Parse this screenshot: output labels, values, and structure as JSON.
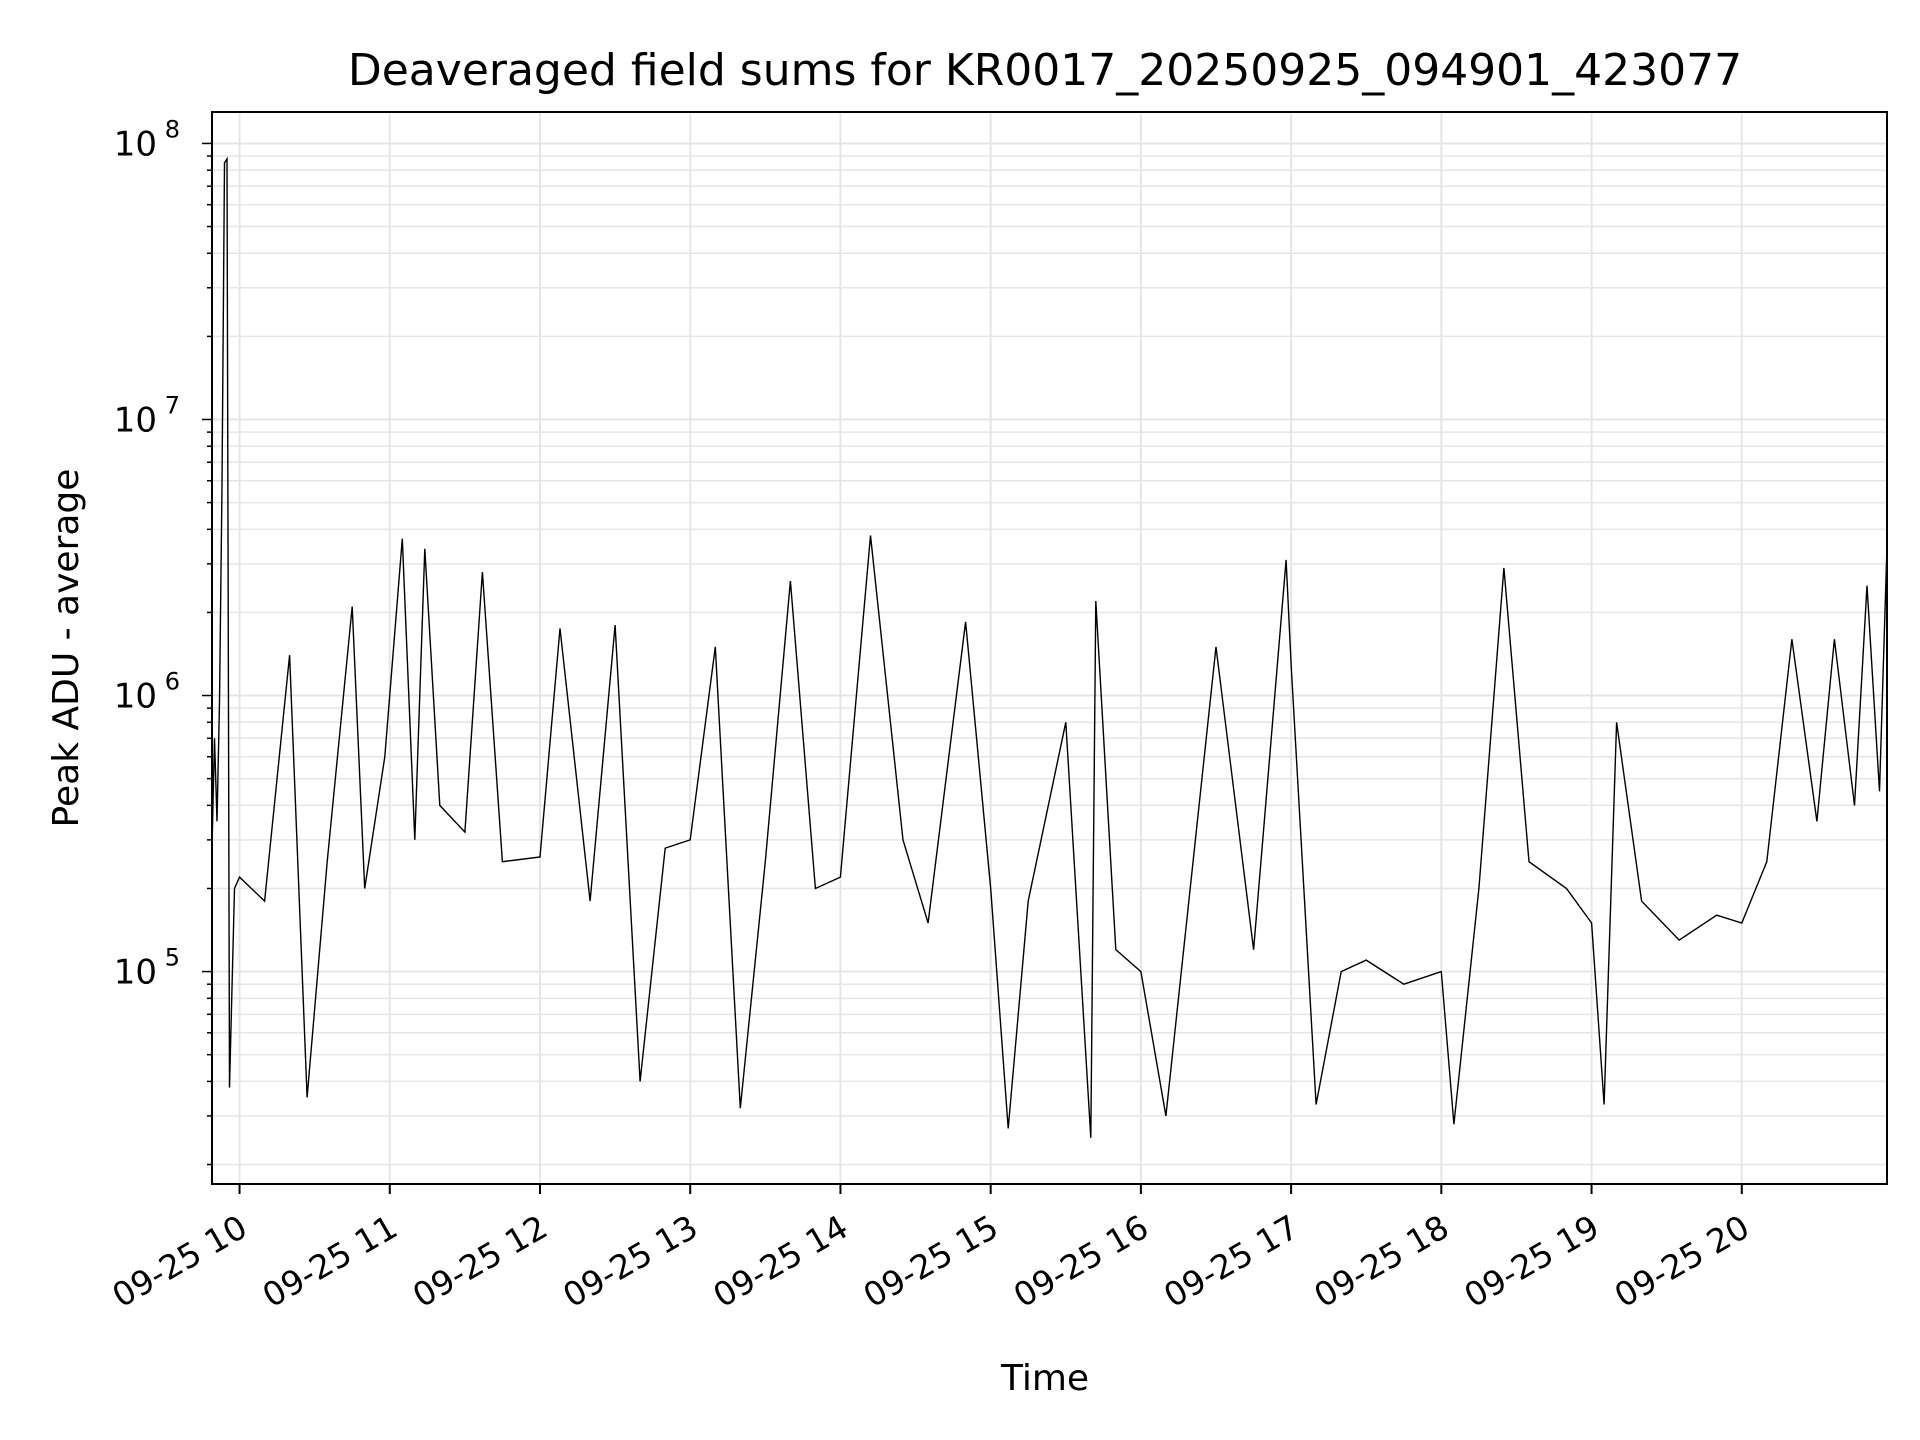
{
  "chart_data": {
    "type": "line",
    "title": "Deaveraged field sums for KR0017_20250925_094901_423077",
    "xlabel": "Time",
    "ylabel": "Peak ADU - average",
    "yscale": "log",
    "ylim": [
      17000,
      130000000
    ],
    "xlim": [
      "2025-09-25 09:49",
      "2025-09-25 20:58"
    ],
    "grid": true,
    "line_color": "#000000",
    "grid_color": "#e6e6e6",
    "x_ticks": [
      {
        "value": "2025-09-25 10:00",
        "label": "09-25 10"
      },
      {
        "value": "2025-09-25 11:00",
        "label": "09-25 11"
      },
      {
        "value": "2025-09-25 12:00",
        "label": "09-25 12"
      },
      {
        "value": "2025-09-25 13:00",
        "label": "09-25 13"
      },
      {
        "value": "2025-09-25 14:00",
        "label": "09-25 14"
      },
      {
        "value": "2025-09-25 15:00",
        "label": "09-25 15"
      },
      {
        "value": "2025-09-25 16:00",
        "label": "09-25 16"
      },
      {
        "value": "2025-09-25 17:00",
        "label": "09-25 17"
      },
      {
        "value": "2025-09-25 18:00",
        "label": "09-25 18"
      },
      {
        "value": "2025-09-25 19:00",
        "label": "09-25 19"
      },
      {
        "value": "2025-09-25 20:00",
        "label": "09-25 20"
      }
    ],
    "y_ticks": [
      {
        "value": 100000,
        "base": "10",
        "exp": "5"
      },
      {
        "value": 1000000,
        "base": "10",
        "exp": "6"
      },
      {
        "value": 10000000,
        "base": "10",
        "exp": "7"
      },
      {
        "value": 100000000,
        "base": "10",
        "exp": "8"
      }
    ],
    "series": [
      {
        "points": [
          [
            "2025-09-25 09:49",
            280000
          ],
          [
            "2025-09-25 09:50",
            700000
          ],
          [
            "2025-09-25 09:51",
            350000
          ],
          [
            "2025-09-25 09:52",
            950000
          ],
          [
            "2025-09-25 09:53",
            5800000
          ],
          [
            "2025-09-25 09:54",
            85000000
          ],
          [
            "2025-09-25 09:55",
            88000000
          ],
          [
            "2025-09-25 09:56",
            38000
          ],
          [
            "2025-09-25 09:58",
            200000
          ],
          [
            "2025-09-25 10:00",
            220000
          ],
          [
            "2025-09-25 10:10",
            180000
          ],
          [
            "2025-09-25 10:20",
            1400000
          ],
          [
            "2025-09-25 10:27",
            35000
          ],
          [
            "2025-09-25 10:35",
            250000
          ],
          [
            "2025-09-25 10:45",
            2100000
          ],
          [
            "2025-09-25 10:50",
            200000
          ],
          [
            "2025-09-25 10:58",
            600000
          ],
          [
            "2025-09-25 11:05",
            3700000
          ],
          [
            "2025-09-25 11:10",
            300000
          ],
          [
            "2025-09-25 11:14",
            3400000
          ],
          [
            "2025-09-25 11:20",
            400000
          ],
          [
            "2025-09-25 11:30",
            320000
          ],
          [
            "2025-09-25 11:37",
            2800000
          ],
          [
            "2025-09-25 11:45",
            250000
          ],
          [
            "2025-09-25 12:00",
            260000
          ],
          [
            "2025-09-25 12:08",
            1750000
          ],
          [
            "2025-09-25 12:20",
            180000
          ],
          [
            "2025-09-25 12:30",
            1800000
          ],
          [
            "2025-09-25 12:40",
            40000
          ],
          [
            "2025-09-25 12:50",
            280000
          ],
          [
            "2025-09-25 13:00",
            300000
          ],
          [
            "2025-09-25 13:10",
            1500000
          ],
          [
            "2025-09-25 13:20",
            32000
          ],
          [
            "2025-09-25 13:30",
            250000
          ],
          [
            "2025-09-25 13:40",
            2600000
          ],
          [
            "2025-09-25 13:50",
            200000
          ],
          [
            "2025-09-25 14:00",
            220000
          ],
          [
            "2025-09-25 14:12",
            3800000
          ],
          [
            "2025-09-25 14:25",
            300000
          ],
          [
            "2025-09-25 14:35",
            150000
          ],
          [
            "2025-09-25 14:50",
            1850000
          ],
          [
            "2025-09-25 15:00",
            200000
          ],
          [
            "2025-09-25 15:07",
            27000
          ],
          [
            "2025-09-25 15:15",
            180000
          ],
          [
            "2025-09-25 15:30",
            800000
          ],
          [
            "2025-09-25 15:40",
            25000
          ],
          [
            "2025-09-25 15:42",
            2200000
          ],
          [
            "2025-09-25 15:50",
            120000
          ],
          [
            "2025-09-25 16:00",
            100000
          ],
          [
            "2025-09-25 16:10",
            30000
          ],
          [
            "2025-09-25 16:30",
            1500000
          ],
          [
            "2025-09-25 16:45",
            120000
          ],
          [
            "2025-09-25 16:58",
            3100000
          ],
          [
            "2025-09-25 17:00",
            1300000
          ],
          [
            "2025-09-25 17:10",
            33000
          ],
          [
            "2025-09-25 17:20",
            100000
          ],
          [
            "2025-09-25 17:30",
            110000
          ],
          [
            "2025-09-25 17:45",
            90000
          ],
          [
            "2025-09-25 18:00",
            100000
          ],
          [
            "2025-09-25 18:05",
            28000
          ],
          [
            "2025-09-25 18:15",
            200000
          ],
          [
            "2025-09-25 18:25",
            2900000
          ],
          [
            "2025-09-25 18:35",
            250000
          ],
          [
            "2025-09-25 18:50",
            200000
          ],
          [
            "2025-09-25 19:00",
            150000
          ],
          [
            "2025-09-25 19:05",
            33000
          ],
          [
            "2025-09-25 19:10",
            800000
          ],
          [
            "2025-09-25 19:20",
            180000
          ],
          [
            "2025-09-25 19:35",
            130000
          ],
          [
            "2025-09-25 19:50",
            160000
          ],
          [
            "2025-09-25 20:00",
            150000
          ],
          [
            "2025-09-25 20:10",
            250000
          ],
          [
            "2025-09-25 20:20",
            1600000
          ],
          [
            "2025-09-25 20:30",
            350000
          ],
          [
            "2025-09-25 20:37",
            1600000
          ],
          [
            "2025-09-25 20:45",
            400000
          ],
          [
            "2025-09-25 20:50",
            2500000
          ],
          [
            "2025-09-25 20:55",
            450000
          ],
          [
            "2025-09-25 20:58",
            3500000
          ]
        ]
      }
    ]
  }
}
